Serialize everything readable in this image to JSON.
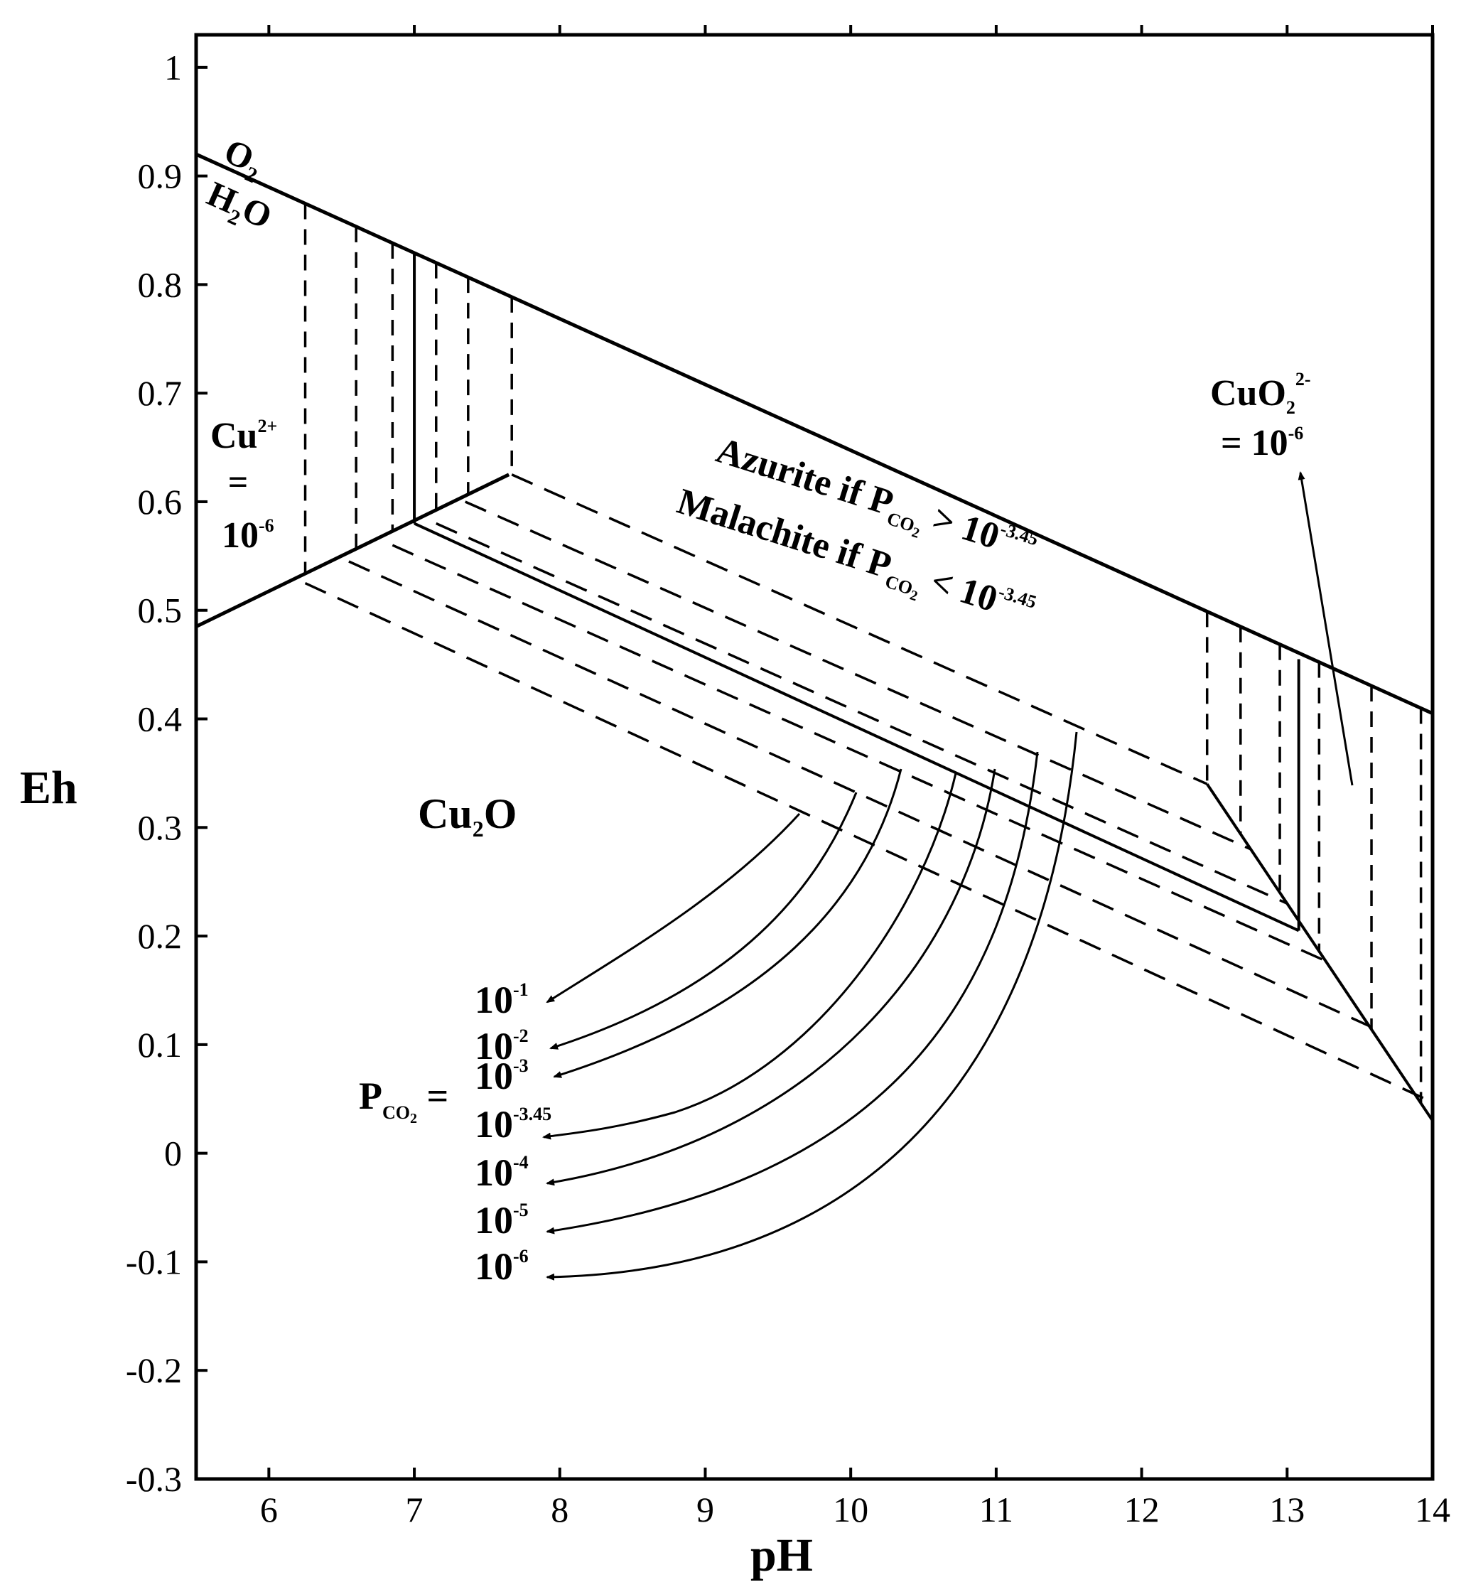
{
  "chart_data": {
    "type": "line",
    "title": "",
    "xlabel": "pH",
    "ylabel": "Eh",
    "xlim": [
      5.5,
      14
    ],
    "ylim": [
      -0.3,
      1.03
    ],
    "x_ticks": [
      "6",
      "7",
      "8",
      "9",
      "10",
      "11",
      "12",
      "13",
      "14"
    ],
    "y_ticks": [
      "1",
      "0.9",
      "0.8",
      "0.7",
      "0.6",
      "0.5",
      "0.4",
      "0.3",
      "0.2",
      "0.1",
      "0",
      "-0.1",
      "-0.2",
      "-0.3"
    ],
    "grid": false,
    "legend": "none",
    "labels": {
      "o2": "O",
      "o2_sub": "2",
      "h2o_h": "H",
      "h2o_sub": "2",
      "h2o_o": "O",
      "cu2plus": "Cu",
      "cu2plus_sup": "2+",
      "equals": "=",
      "cu2plus_conc": "10",
      "cu2plus_conc_sup": "-6",
      "cuo2": "CuO",
      "cuo2_sub": "2",
      "cuo2_sup": "2-",
      "cuo2_conc": "= 10",
      "cuo2_conc_sup": "-6",
      "azurite_a": "Azurite if P",
      "azurite_sub": "CO",
      "azurite_sub2": "2",
      "azurite_b": " > 10",
      "azurite_sup": "-3.45",
      "malachite_a": "Malachite if P",
      "malachite_sub": "CO",
      "malachite_sub2": "2",
      "malachite_b": " < 10",
      "malachite_sup": "-3.45",
      "cu2o": "Cu",
      "cu2o_sub": "2",
      "cu2o_o": "O",
      "pco2_p": "P",
      "pco2_sub": "CO",
      "pco2_sub2": "2",
      "pco2_eq": " ="
    },
    "pco2_labels": [
      {
        "base": "10",
        "exp": "-1"
      },
      {
        "base": "10",
        "exp": "-2"
      },
      {
        "base": "10",
        "exp": "-3"
      },
      {
        "base": "10",
        "exp": "-3.45"
      },
      {
        "base": "10",
        "exp": "-4"
      },
      {
        "base": "10",
        "exp": "-5"
      },
      {
        "base": "10",
        "exp": "-6"
      }
    ],
    "boundaries": {
      "water_upper": {
        "x": [
          5.5,
          14.0
        ],
        "y": [
          0.92,
          0.405
        ]
      },
      "cu2plus_cu2o": {
        "x": [
          5.5,
          7.65
        ],
        "y": [
          0.485,
          0.625
        ]
      },
      "cu_solid_cu2o_ref": {
        "x": [
          7.0,
          13.08
        ],
        "y": [
          0.58,
          0.205
        ]
      },
      "cu2plus_solid_ref": {
        "x": [
          7.0,
          7.0
        ],
        "y": [
          0.83,
          0.58
        ]
      },
      "cuo2_solid_ref": {
        "x": [
          13.08,
          13.08
        ],
        "y": [
          0.455,
          0.205
        ]
      },
      "cuo2_cu2o": {
        "x": [
          12.45,
          14.0
        ],
        "y": [
          0.34,
          0.03
        ]
      }
    },
    "dashed_vertical_pH": [
      6.25,
      6.6,
      6.85,
      7.15,
      7.37,
      7.67,
      12.45,
      12.68,
      12.95,
      13.22,
      13.58,
      13.92
    ],
    "dashed_carbonate_lines": [
      {
        "x": [
          7.67,
          12.45
        ],
        "y": [
          0.625,
          0.34
        ]
      },
      {
        "x": [
          7.35,
          12.75
        ],
        "y": [
          0.6,
          0.28
        ]
      },
      {
        "x": [
          7.15,
          13.0
        ],
        "y": [
          0.58,
          0.23
        ]
      },
      {
        "x": [
          6.85,
          13.3
        ],
        "y": [
          0.56,
          0.175
        ]
      },
      {
        "x": [
          6.55,
          13.6
        ],
        "y": [
          0.545,
          0.115
        ]
      },
      {
        "x": [
          6.25,
          13.95
        ],
        "y": [
          0.525,
          0.05
        ]
      }
    ]
  }
}
